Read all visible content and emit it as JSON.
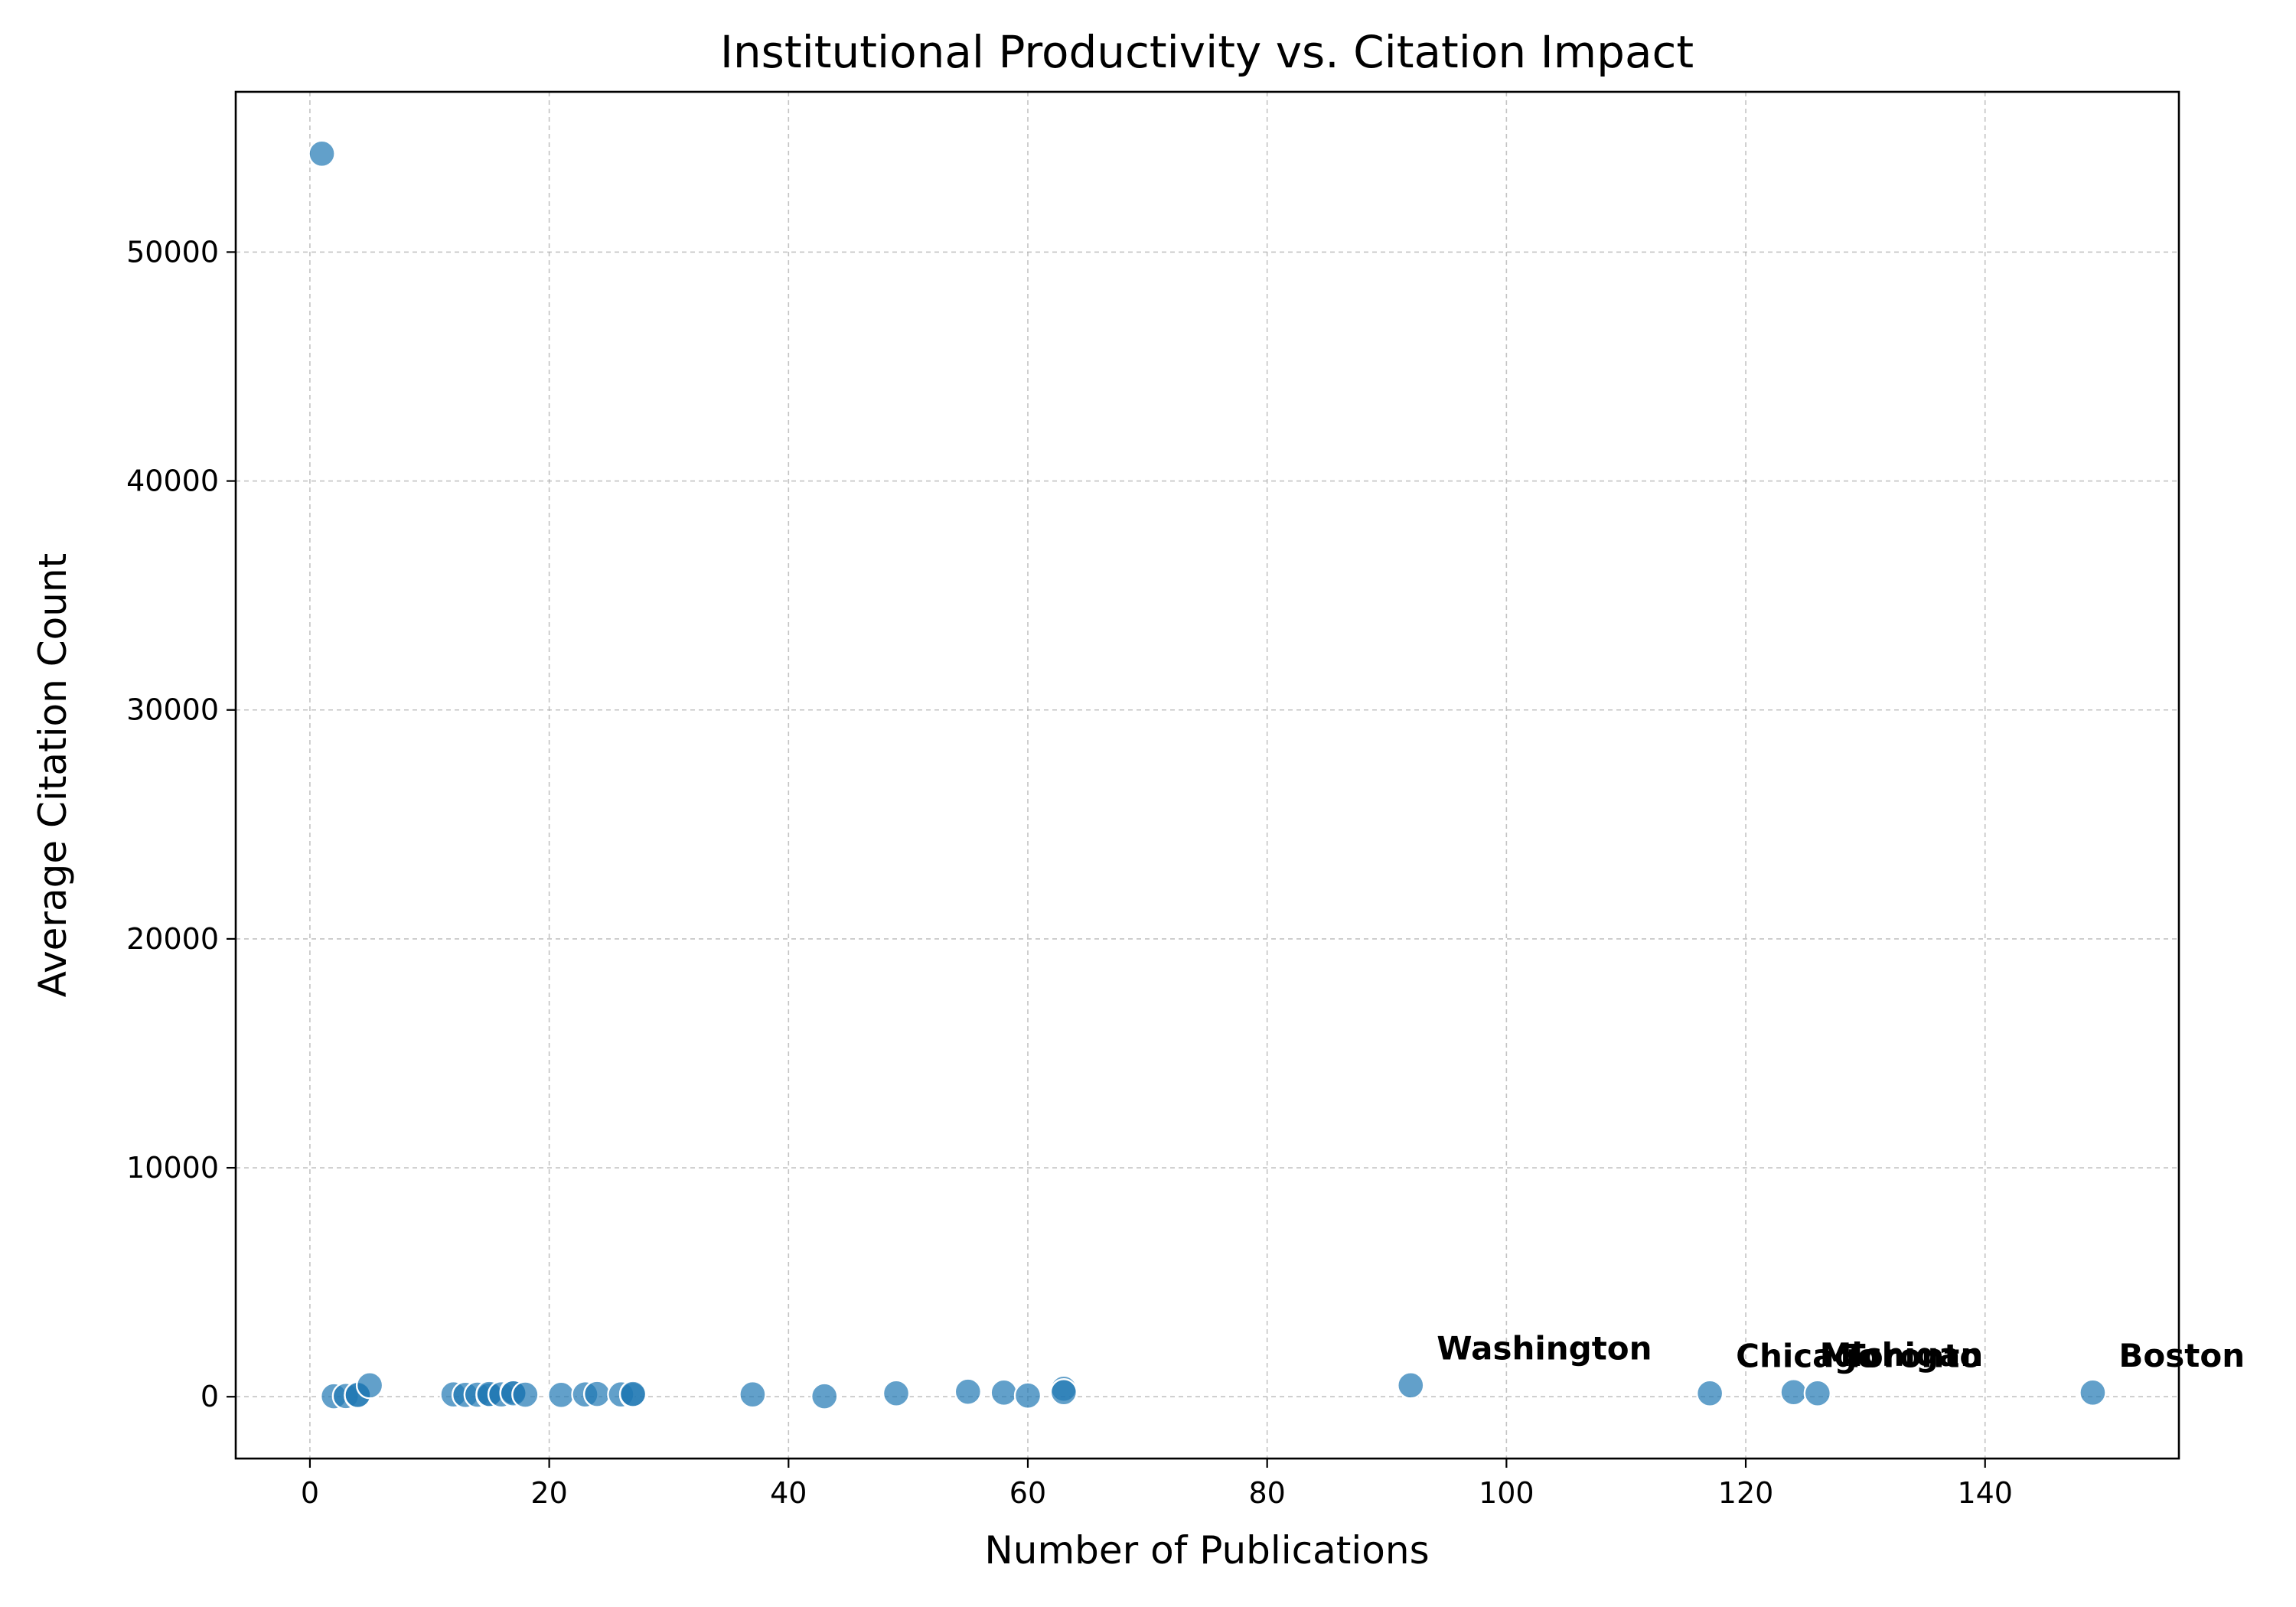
{
  "chart_data": {
    "type": "scatter",
    "title": "Institutional Productivity vs. Citation Impact",
    "xlabel": "Number of Publications",
    "ylabel": "Average Citation Count",
    "xlim": [
      -6.2,
      156.2
    ],
    "ylim": [
      -2700,
      57000
    ],
    "xticks": [
      0,
      20,
      40,
      60,
      80,
      100,
      120,
      140
    ],
    "yticks": [
      0,
      10000,
      20000,
      30000,
      40000,
      50000
    ],
    "grid": true,
    "color": "#1f77b4",
    "points": [
      {
        "x": 1,
        "y": 54300
      },
      {
        "x": 2,
        "y": 20
      },
      {
        "x": 3,
        "y": 30
      },
      {
        "x": 4,
        "y": 50
      },
      {
        "x": 4,
        "y": 80
      },
      {
        "x": 5,
        "y": 500
      },
      {
        "x": 12,
        "y": 100
      },
      {
        "x": 13,
        "y": 80
      },
      {
        "x": 14,
        "y": 90
      },
      {
        "x": 15,
        "y": 60
      },
      {
        "x": 15,
        "y": 120
      },
      {
        "x": 16,
        "y": 100
      },
      {
        "x": 17,
        "y": 200
      },
      {
        "x": 17,
        "y": 150
      },
      {
        "x": 18,
        "y": 90
      },
      {
        "x": 21,
        "y": 80
      },
      {
        "x": 23,
        "y": 100
      },
      {
        "x": 24,
        "y": 120
      },
      {
        "x": 26,
        "y": 100
      },
      {
        "x": 27,
        "y": 80
      },
      {
        "x": 27,
        "y": 120
      },
      {
        "x": 37,
        "y": 100
      },
      {
        "x": 43,
        "y": 20
      },
      {
        "x": 49,
        "y": 150
      },
      {
        "x": 55,
        "y": 220
      },
      {
        "x": 58,
        "y": 180
      },
      {
        "x": 60,
        "y": 50
      },
      {
        "x": 63,
        "y": 350
      },
      {
        "x": 63,
        "y": 200
      },
      {
        "x": 92,
        "y": 500
      },
      {
        "x": 117,
        "y": 150
      },
      {
        "x": 124,
        "y": 200
      },
      {
        "x": 126,
        "y": 150
      },
      {
        "x": 149,
        "y": 180
      }
    ],
    "annotations": [
      {
        "text": "Washington",
        "x": 92,
        "y": 500
      },
      {
        "text": "Chicago",
        "x": 117,
        "y": 150
      },
      {
        "text": "Michigan",
        "x": 124,
        "y": 200
      },
      {
        "text": "Toronto",
        "x": 126,
        "y": 150
      },
      {
        "text": "Boston",
        "x": 149,
        "y": 180
      }
    ]
  }
}
